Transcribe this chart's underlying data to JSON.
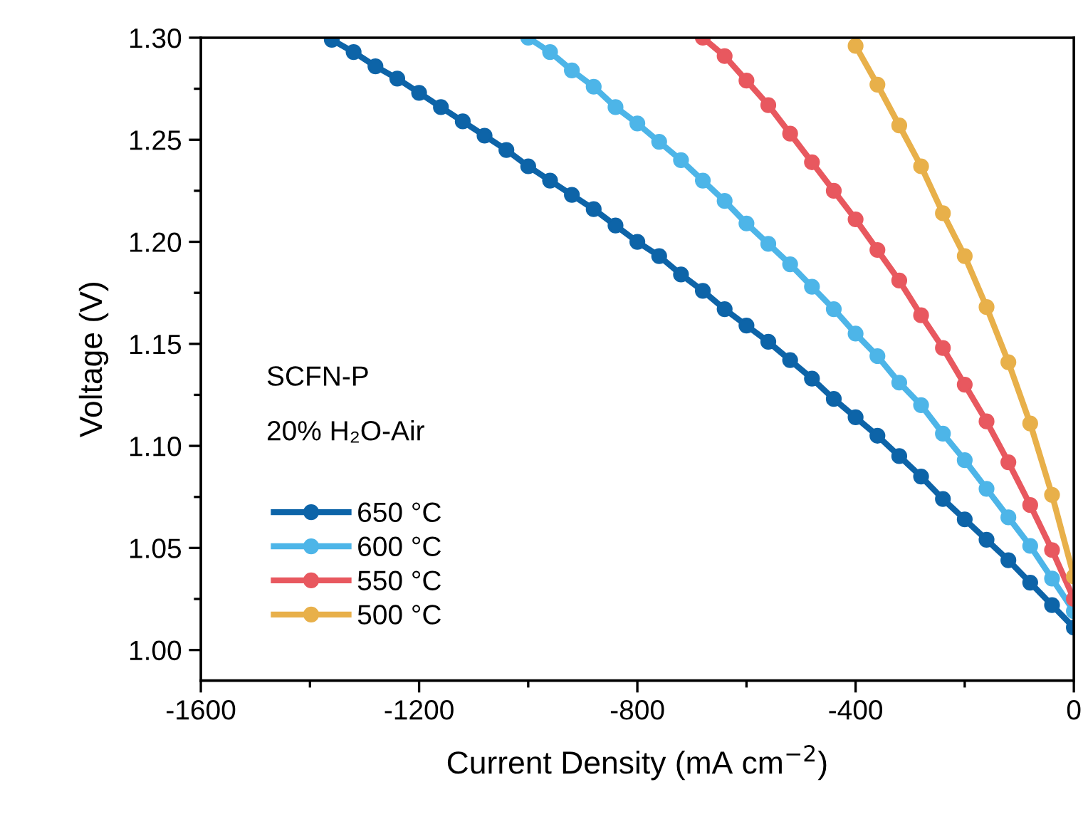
{
  "chart_data": {
    "type": "line",
    "xlabel": "Current Density (mA cm$^{−2}$)",
    "ylabel": "Voltage (V)",
    "annotations": [
      "SCFN-P",
      "20% H₂O-Air"
    ],
    "xlim": [
      -1600,
      0
    ],
    "xticks": [
      -1600,
      -1200,
      -800,
      -400,
      0
    ],
    "ylim": [
      0.985,
      1.3
    ],
    "yticks": [
      {
        "value": 1.0,
        "label": "1.00"
      },
      1.05,
      {
        "value": 1.1,
        "label": "1.10"
      },
      1.15,
      {
        "value": 1.2,
        "label": "1.20"
      },
      1.25,
      {
        "value": 1.3,
        "label": "1.30"
      }
    ],
    "grid": false,
    "legend": "lower left",
    "marker": "circle",
    "line_style": "solid",
    "series": [
      {
        "name": "650 °C",
        "color": "#0d64a8",
        "x": [
          -1360,
          -1320,
          -1280,
          -1240,
          -1200,
          -1160,
          -1120,
          -1080,
          -1040,
          -1000,
          -960,
          -920,
          -880,
          -840,
          -800,
          -760,
          -720,
          -680,
          -640,
          -600,
          -560,
          -520,
          -480,
          -440,
          -400,
          -360,
          -320,
          -280,
          -240,
          -200,
          -160,
          -120,
          -80,
          -40,
          0
        ],
        "values": [
          1.299,
          1.293,
          1.286,
          1.28,
          1.273,
          1.266,
          1.259,
          1.252,
          1.245,
          1.237,
          1.23,
          1.223,
          1.216,
          1.208,
          1.2,
          1.193,
          1.184,
          1.176,
          1.167,
          1.159,
          1.151,
          1.142,
          1.133,
          1.123,
          1.114,
          1.105,
          1.095,
          1.085,
          1.074,
          1.064,
          1.054,
          1.044,
          1.033,
          1.022,
          1.011
        ]
      },
      {
        "name": "600 °C",
        "color": "#4db5e8",
        "x": [
          -1000,
          -960,
          -920,
          -880,
          -840,
          -800,
          -760,
          -720,
          -680,
          -640,
          -600,
          -560,
          -520,
          -480,
          -440,
          -400,
          -360,
          -320,
          -280,
          -240,
          -200,
          -160,
          -120,
          -80,
          -40,
          0
        ],
        "values": [
          1.3,
          1.293,
          1.284,
          1.276,
          1.266,
          1.258,
          1.249,
          1.24,
          1.23,
          1.22,
          1.209,
          1.199,
          1.189,
          1.178,
          1.167,
          1.155,
          1.144,
          1.131,
          1.12,
          1.106,
          1.093,
          1.079,
          1.065,
          1.051,
          1.035,
          1.019
        ]
      },
      {
        "name": "550 °C",
        "color": "#e8585f",
        "x": [
          -680,
          -640,
          -600,
          -560,
          -520,
          -480,
          -440,
          -400,
          -360,
          -320,
          -280,
          -240,
          -200,
          -160,
          -120,
          -80,
          -40,
          0
        ],
        "values": [
          1.3,
          1.291,
          1.279,
          1.267,
          1.253,
          1.239,
          1.225,
          1.211,
          1.196,
          1.181,
          1.164,
          1.148,
          1.13,
          1.112,
          1.092,
          1.071,
          1.049,
          1.025
        ]
      },
      {
        "name": "500 °C",
        "color": "#e8b04a",
        "x": [
          -400,
          -360,
          -320,
          -280,
          -240,
          -200,
          -160,
          -120,
          -80,
          -40,
          0
        ],
        "values": [
          1.296,
          1.277,
          1.257,
          1.237,
          1.214,
          1.193,
          1.168,
          1.141,
          1.111,
          1.076,
          1.036
        ]
      }
    ]
  }
}
